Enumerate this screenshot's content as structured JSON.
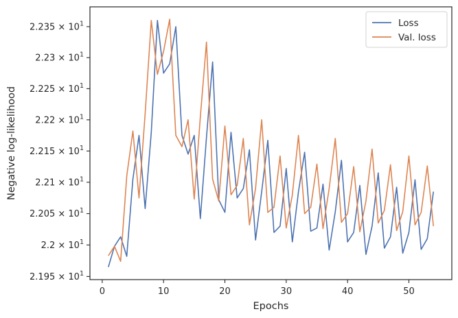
{
  "chart_data": {
    "type": "line",
    "xlabel": "Epochs",
    "ylabel": "Negative log-likelihood",
    "xlim": [
      -2,
      57
    ],
    "ylim": [
      21.945,
      22.382
    ],
    "xticks": [
      0,
      10,
      20,
      30,
      40,
      50
    ],
    "xtick_labels": [
      "0",
      "10",
      "20",
      "30",
      "40",
      "50"
    ],
    "yticks": [
      21.95,
      22.0,
      22.05,
      22.1,
      22.15,
      22.2,
      22.25,
      22.3,
      22.35
    ],
    "ytick_labels": [
      {
        "mant": "2.195",
        "exp": "1"
      },
      {
        "mant": "2.2",
        "exp": "1"
      },
      {
        "mant": "2.205",
        "exp": "1"
      },
      {
        "mant": "2.21",
        "exp": "1"
      },
      {
        "mant": "2.215",
        "exp": "1"
      },
      {
        "mant": "2.22",
        "exp": "1"
      },
      {
        "mant": "2.225",
        "exp": "1"
      },
      {
        "mant": "2.23",
        "exp": "1"
      },
      {
        "mant": "2.235",
        "exp": "1"
      }
    ],
    "y_scale": "log",
    "grid": false,
    "legend_position": "top-right",
    "x": [
      1,
      2,
      3,
      4,
      5,
      6,
      7,
      8,
      9,
      10,
      11,
      12,
      13,
      14,
      15,
      16,
      17,
      18,
      19,
      20,
      21,
      22,
      23,
      24,
      25,
      26,
      27,
      28,
      29,
      30,
      31,
      32,
      33,
      34,
      35,
      36,
      37,
      38,
      39,
      40,
      41,
      42,
      43,
      44,
      45,
      46,
      47,
      48,
      49,
      50,
      51,
      52,
      53,
      54
    ],
    "series": [
      {
        "name": "Loss",
        "color": "#4c72b0",
        "values": [
          21.965,
          21.998,
          22.013,
          21.982,
          22.105,
          22.175,
          22.058,
          22.18,
          22.36,
          22.275,
          22.29,
          22.35,
          22.175,
          22.145,
          22.175,
          22.042,
          22.172,
          22.293,
          22.072,
          22.052,
          22.18,
          22.075,
          22.09,
          22.152,
          22.008,
          22.085,
          22.167,
          22.02,
          22.03,
          22.122,
          22.005,
          22.085,
          22.148,
          22.022,
          22.027,
          22.097,
          21.992,
          22.053,
          22.135,
          22.005,
          22.02,
          22.095,
          21.985,
          22.03,
          22.115,
          21.995,
          22.013,
          22.092,
          21.987,
          22.02,
          22.104,
          21.993,
          22.01,
          22.085
        ]
      },
      {
        "name": "Val. loss",
        "color": "#dd8452",
        "values": [
          21.983,
          21.998,
          21.974,
          22.11,
          22.182,
          22.075,
          22.21,
          22.36,
          22.273,
          22.31,
          22.362,
          22.175,
          22.157,
          22.2,
          22.073,
          22.205,
          22.325,
          22.105,
          22.07,
          22.19,
          22.08,
          22.095,
          22.17,
          22.032,
          22.09,
          22.2,
          22.052,
          22.06,
          22.142,
          22.027,
          22.08,
          22.175,
          22.05,
          22.06,
          22.129,
          22.026,
          22.09,
          22.17,
          22.036,
          22.05,
          22.125,
          22.021,
          22.07,
          22.153,
          22.035,
          22.055,
          22.128,
          22.023,
          22.053,
          22.142,
          22.032,
          22.052,
          22.126,
          22.03
        ]
      }
    ]
  }
}
